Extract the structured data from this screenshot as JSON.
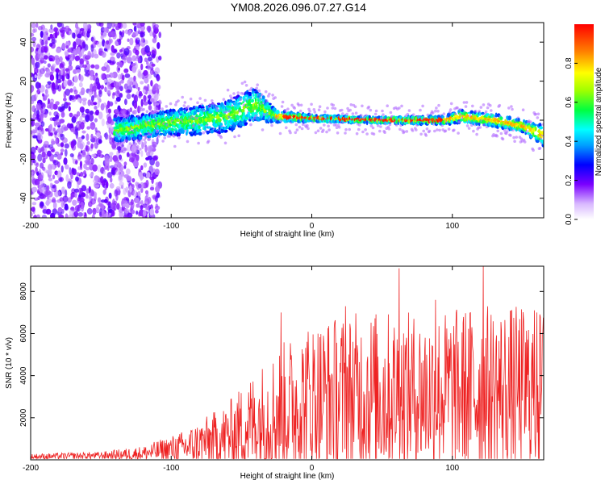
{
  "chart_data": [
    {
      "type": "heatmap",
      "title": "YM08.2026.096.07.27.G14",
      "xlabel": "Height of straight line (km)",
      "ylabel": "Frequency (Hz)",
      "xlim": [
        -200,
        165
      ],
      "ylim": [
        -50,
        50
      ],
      "xticks": [
        "-200",
        "-100",
        "0",
        "100"
      ],
      "yticks": [
        "40",
        "20",
        "0",
        "-20",
        "-40"
      ],
      "colorbar": {
        "label": "Normalized spectral amplitude",
        "range": [
          0,
          1
        ],
        "ticks": [
          "0.0",
          "0.2",
          "0.4",
          "0.6",
          "0.8"
        ]
      },
      "ridge": [
        {
          "x": -135,
          "f": -5,
          "spread": 6
        },
        {
          "x": -110,
          "f": -2,
          "spread": 6
        },
        {
          "x": -80,
          "f": 0,
          "spread": 7
        },
        {
          "x": -60,
          "f": 2,
          "spread": 8
        },
        {
          "x": -40,
          "f": 8,
          "spread": 8
        },
        {
          "x": -25,
          "f": 2,
          "spread": 3
        },
        {
          "x": 0,
          "f": 1,
          "spread": 1.5
        },
        {
          "x": 50,
          "f": 0,
          "spread": 1.5
        },
        {
          "x": 95,
          "f": 0,
          "spread": 2
        },
        {
          "x": 105,
          "f": 2,
          "spread": 3
        },
        {
          "x": 130,
          "f": 0,
          "spread": 3
        },
        {
          "x": 150,
          "f": -3,
          "spread": 3
        },
        {
          "x": 165,
          "f": -8,
          "spread": 5
        }
      ]
    },
    {
      "type": "line",
      "xlabel": "Height of straight line (km)",
      "ylabel": "SNR (10 * v/v)",
      "xlim": [
        -200,
        165
      ],
      "ylim": [
        0,
        9200
      ],
      "xticks": [
        "-200",
        "-100",
        "0",
        "100"
      ],
      "yticks": [
        "2000",
        "4000",
        "6000",
        "8000"
      ],
      "color": "#ee2222",
      "envelope": [
        {
          "x": -200,
          "base": 150,
          "amp": 150
        },
        {
          "x": -150,
          "base": 200,
          "amp": 200
        },
        {
          "x": -120,
          "base": 300,
          "amp": 400
        },
        {
          "x": -90,
          "base": 600,
          "amp": 900
        },
        {
          "x": -60,
          "base": 1100,
          "amp": 1800
        },
        {
          "x": -40,
          "base": 1800,
          "amp": 2800
        },
        {
          "x": -20,
          "base": 2400,
          "amp": 3600
        },
        {
          "x": 0,
          "base": 2900,
          "amp": 4200
        },
        {
          "x": 40,
          "base": 3100,
          "amp": 4500
        },
        {
          "x": 80,
          "base": 3200,
          "amp": 4200
        },
        {
          "x": 120,
          "base": 3300,
          "amp": 4600
        },
        {
          "x": 165,
          "base": 3300,
          "amp": 4400
        }
      ],
      "peaks": [
        {
          "x": -22,
          "y": 7000
        },
        {
          "x": 24,
          "y": 7300
        },
        {
          "x": 62,
          "y": 9100
        },
        {
          "x": 88,
          "y": 7600
        },
        {
          "x": 122,
          "y": 9200
        },
        {
          "x": 160,
          "y": 7000
        }
      ]
    }
  ]
}
